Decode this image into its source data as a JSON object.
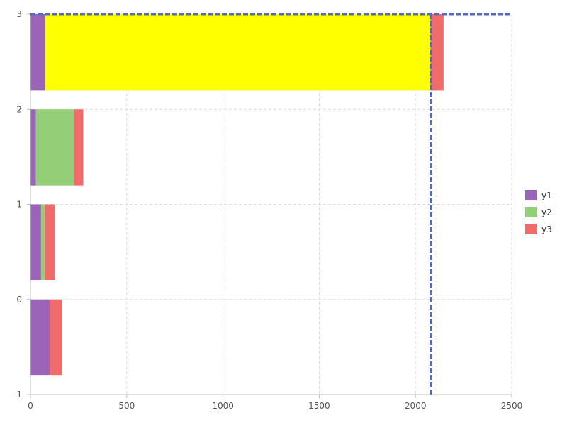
{
  "chart_data": {
    "type": "bar",
    "orientation": "horizontal",
    "stacked": true,
    "categories": [
      0,
      1,
      2,
      3
    ],
    "series": [
      {
        "name": "y1",
        "values": [
          100,
          55,
          28,
          78
        ],
        "color": "#9c64b8"
      },
      {
        "name": "y2",
        "values": [
          0,
          18,
          198,
          2000
        ],
        "color": "#93cf76"
      },
      {
        "name": "y3",
        "values": [
          65,
          55,
          48,
          68
        ],
        "color": "#f26b6b"
      }
    ],
    "highlight": {
      "category": 3,
      "series": "y2",
      "color": "#ffff00"
    },
    "reference_lines": {
      "x": 2080,
      "y": 3,
      "color": "#4f6bc2"
    },
    "xlim": [
      0,
      2500
    ],
    "ylim": [
      -1,
      3
    ],
    "xticks": [
      0,
      500,
      1000,
      1500,
      2000,
      2500
    ],
    "yticks": [
      -1,
      0,
      1,
      2,
      3
    ],
    "title": "",
    "xlabel": "",
    "ylabel": "",
    "grid": true,
    "legend": {
      "position": "right",
      "items": [
        "y1",
        "y2",
        "y3"
      ]
    }
  }
}
